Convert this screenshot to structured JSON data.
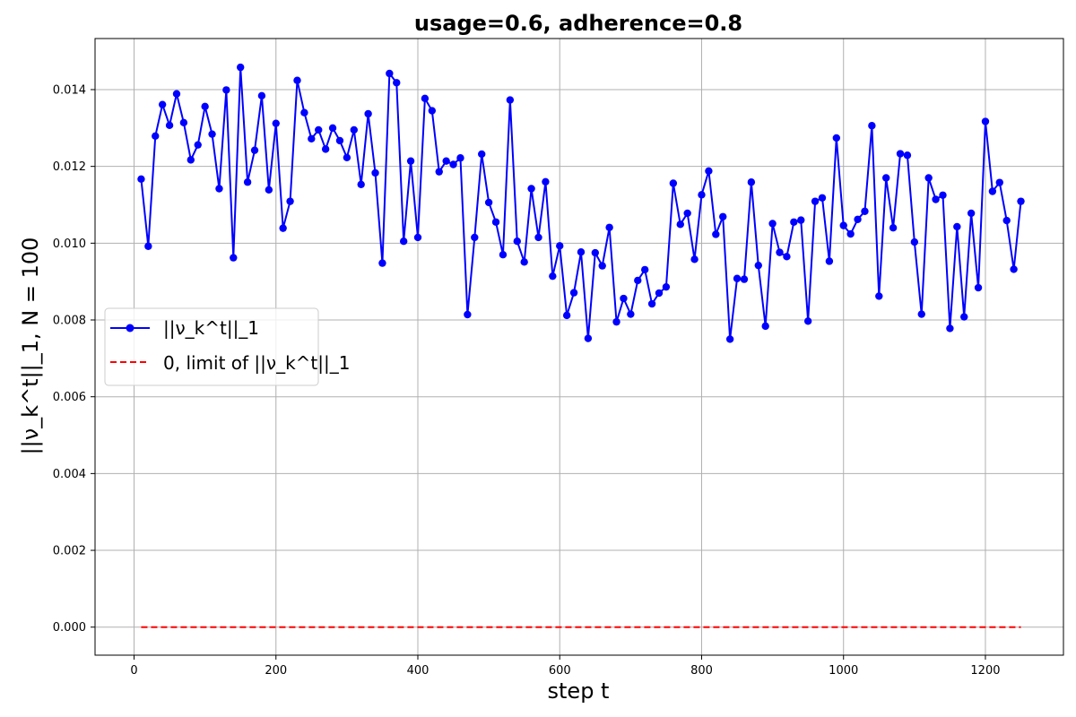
{
  "chart_data": {
    "type": "line",
    "title": "usage=0.6, adherence=0.8",
    "xlabel": "step t",
    "ylabel": "||ν_k^t||_1,  N = 100",
    "xlim": [
      -55,
      1310
    ],
    "ylim": [
      -0.00073,
      0.01533
    ],
    "x_ticks": [
      0,
      200,
      400,
      600,
      800,
      1000,
      1200
    ],
    "x_tick_labels": [
      "0",
      "200",
      "400",
      "600",
      "800",
      "1000",
      "1200"
    ],
    "y_ticks": [
      0.0,
      0.002,
      0.004,
      0.006,
      0.008,
      0.01,
      0.012,
      0.014
    ],
    "y_tick_labels": [
      "0.000",
      "0.002",
      "0.004",
      "0.006",
      "0.008",
      "0.010",
      "0.012",
      "0.014"
    ],
    "grid": true,
    "legend_position": "center-left",
    "colors": {
      "series": "#0000ff",
      "limit": "#ff0000",
      "grid": "#b0b0b0",
      "axes": "#000000"
    },
    "x": [
      10,
      20,
      30,
      40,
      50,
      60,
      70,
      80,
      90,
      100,
      110,
      120,
      130,
      140,
      150,
      160,
      170,
      180,
      190,
      200,
      210,
      220,
      230,
      240,
      250,
      260,
      270,
      280,
      290,
      300,
      310,
      320,
      330,
      340,
      350,
      360,
      370,
      380,
      390,
      400,
      410,
      420,
      430,
      440,
      450,
      460,
      470,
      480,
      490,
      500,
      510,
      520,
      530,
      540,
      550,
      560,
      570,
      580,
      590,
      600,
      610,
      620,
      630,
      640,
      650,
      660,
      670,
      680,
      690,
      700,
      710,
      720,
      730,
      740,
      750,
      760,
      770,
      780,
      790,
      800,
      810,
      820,
      830,
      840,
      850,
      860,
      870,
      880,
      890,
      900,
      910,
      920,
      930,
      940,
      950,
      960,
      970,
      980,
      990,
      1000,
      1010,
      1020,
      1030,
      1040,
      1050,
      1060,
      1070,
      1080,
      1090,
      1100,
      1110,
      1120,
      1130,
      1140,
      1150,
      1160,
      1170,
      1180,
      1190,
      1200,
      1210,
      1220,
      1230,
      1240,
      1250
    ],
    "series": [
      {
        "name": "||ν_k^t||_1",
        "style": "solid-markers",
        "values": [
          0.01167,
          0.00992,
          0.01279,
          0.01361,
          0.01307,
          0.01389,
          0.01314,
          0.01217,
          0.01256,
          0.01356,
          0.01284,
          0.01142,
          0.01399,
          0.00962,
          0.01458,
          0.01159,
          0.01242,
          0.01384,
          0.01139,
          0.01312,
          0.01039,
          0.01109,
          0.01424,
          0.0134,
          0.01272,
          0.01295,
          0.01245,
          0.013,
          0.01267,
          0.01223,
          0.01295,
          0.01153,
          0.01337,
          0.01183,
          0.00948,
          0.01442,
          0.01418,
          0.01005,
          0.01214,
          0.01015,
          0.01377,
          0.01345,
          0.01186,
          0.01214,
          0.01205,
          0.01222,
          0.00814,
          0.01015,
          0.01232,
          0.01106,
          0.01055,
          0.0097,
          0.01373,
          0.01005,
          0.00951,
          0.01142,
          0.01015,
          0.0116,
          0.00914,
          0.00993,
          0.00812,
          0.00871,
          0.00977,
          0.00752,
          0.00975,
          0.00941,
          0.01041,
          0.00795,
          0.00856,
          0.00815,
          0.00903,
          0.00931,
          0.00842,
          0.0087,
          0.00886,
          0.01156,
          0.01049,
          0.01078,
          0.00958,
          0.01126,
          0.01188,
          0.01023,
          0.01069,
          0.0075,
          0.00908,
          0.00906,
          0.01159,
          0.00942,
          0.00784,
          0.01051,
          0.00976,
          0.00965,
          0.01055,
          0.0106,
          0.00797,
          0.01109,
          0.01118,
          0.00953,
          0.01274,
          0.01046,
          0.01024,
          0.01062,
          0.01083,
          0.01306,
          0.00862,
          0.0117,
          0.0104,
          0.01233,
          0.01229,
          0.01003,
          0.00815,
          0.0117,
          0.01114,
          0.01125,
          0.00778,
          0.01043,
          0.00808,
          0.01078,
          0.00884,
          0.01317,
          0.01135,
          0.01158,
          0.01059,
          0.00932,
          0.01109
        ]
      },
      {
        "name": "0, limit of ||ν_k^t||_1",
        "style": "dashed",
        "values_constant": 0.0
      }
    ],
    "legend": [
      {
        "label": "||ν_k^t||_1"
      },
      {
        "label": "0, limit of ||ν_k^t||_1"
      }
    ]
  }
}
